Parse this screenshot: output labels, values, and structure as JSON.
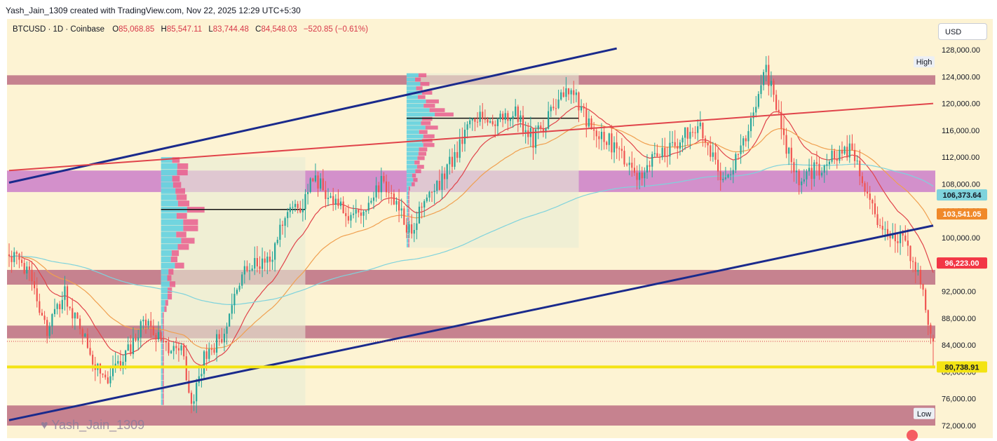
{
  "attribution": "Yash_Jain_1309 created with TradingView.com, Nov 22, 2025 12:29 UTC+5:30",
  "legend": {
    "symbol": "BTCUSD · 1D · Coinbase",
    "open_label": "O",
    "open": "85,068.85",
    "high_label": "H",
    "high": "85,547.11",
    "low_label": "L",
    "low": "83,744.48",
    "close_label": "C",
    "close": "84,548.03",
    "change": "−520.85 (−0.61%)"
  },
  "currency_button": "USD",
  "watermark": "Yash_Jain_1309",
  "colors": {
    "background": "#fdf3d3",
    "up": "#26a69a",
    "down": "#ef5350",
    "trend_channel": "#1a2a8c",
    "red_trend": "#e0434a",
    "zone_pink": "#b8657e",
    "zone_purple": "#c46fc8",
    "support_yellow": "#f3e313",
    "ma_short": "#e0434a",
    "ma_mid": "#f0a050",
    "ma_long": "#7fd3dc"
  },
  "chart_data": {
    "type": "candlestick",
    "y_axis": {
      "min": 71000,
      "max": 130000,
      "ticks": [
        72000,
        76000,
        80000,
        84000,
        88000,
        92000,
        96000,
        100000,
        104000,
        108000,
        112000,
        116000,
        120000,
        124000,
        128000
      ],
      "tick_labels": [
        "72,000.00",
        "76,000.00",
        "80,000.00",
        "84,000.00",
        "88,000.00",
        "92,000.00",
        "96,000.00",
        "100,000.00",
        "104,000.00",
        "108,000.00",
        "112,000.00",
        "116,000.00",
        "120,000.00",
        "124,000.00",
        "128,000.00"
      ]
    },
    "zones": [
      {
        "from": 122800,
        "to": 124200,
        "kind": "resistance"
      },
      {
        "from": 106800,
        "to": 110000,
        "kind": "demand"
      },
      {
        "from": 93000,
        "to": 95200,
        "kind": "resistance"
      },
      {
        "from": 85000,
        "to": 86900,
        "kind": "resistance"
      },
      {
        "from": 72000,
        "to": 75000,
        "kind": "support"
      }
    ],
    "support_line": 80738.91,
    "current_price_dotted": 84548,
    "price_labels": [
      {
        "label": "High",
        "value": 126200,
        "style": "plain"
      },
      {
        "label": "106,373.64",
        "value": 106373.64,
        "style": "cyan"
      },
      {
        "label": "103,541.05",
        "value": 103541.05,
        "style": "orange"
      },
      {
        "label": "96,223.00",
        "value": 96223,
        "style": "red"
      },
      {
        "label": "80,738.91",
        "value": 80738.91,
        "style": "yellow"
      },
      {
        "label": "Low",
        "value": 73800,
        "style": "plain"
      }
    ],
    "trend_lines": [
      {
        "name": "channel-upper",
        "from": [
          0,
          108200
        ],
        "to": [
          240,
          128200
        ]
      },
      {
        "name": "channel-lower",
        "from": [
          0,
          72800
        ],
        "to": [
          365,
          101800
        ]
      },
      {
        "name": "red-trendline",
        "from": [
          0,
          110000
        ],
        "to": [
          365,
          120000
        ]
      }
    ],
    "volume_profiles": [
      {
        "start": 60,
        "end": 117,
        "low": 75000,
        "high": 112000,
        "poc": 104200
      },
      {
        "start": 157,
        "end": 225,
        "low": 98500,
        "high": 124500,
        "poc": 117800
      }
    ],
    "candles_count": 366,
    "ohlc": []
  }
}
